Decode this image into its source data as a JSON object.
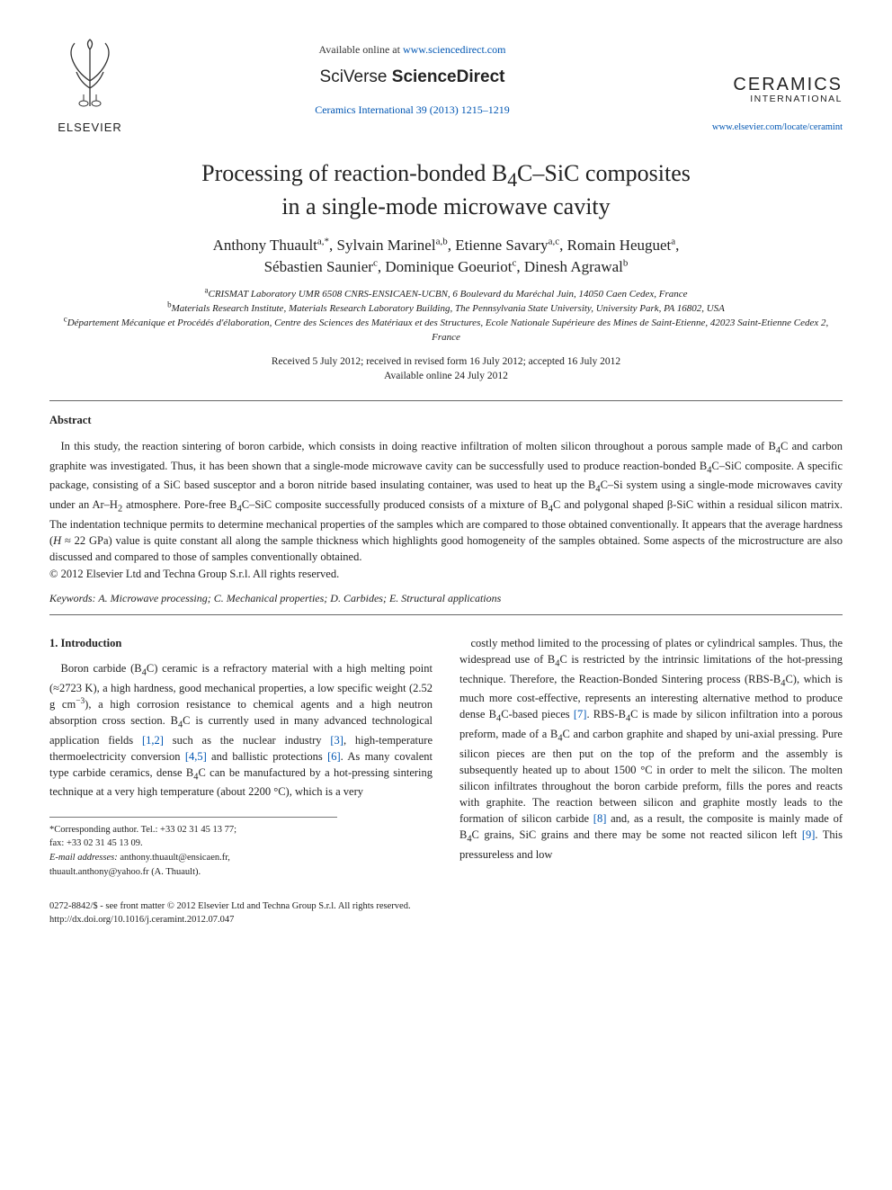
{
  "header": {
    "elsevier_label": "ELSEVIER",
    "available_prefix": "Available online at ",
    "available_link": "www.sciencedirect.com",
    "sciverse_prefix": "SciVerse ",
    "sciverse_main": "ScienceDirect",
    "journal_ref": "Ceramics International 39 (2013) 1215–1219",
    "journal_name": "CERAMICS",
    "journal_sub": "INTERNATIONAL",
    "journal_url": "www.elsevier.com/locate/ceramint"
  },
  "title": {
    "line1_prefix": "Processing of reaction-bonded B",
    "line1_sub": "4",
    "line1_mid": "C–SiC composites",
    "line2": "in a single-mode microwave cavity"
  },
  "authors": {
    "a1_name": "Anthony Thuault",
    "a1_aff": "a,",
    "a1_corr": "*",
    "a2_name": "Sylvain Marinel",
    "a2_aff": "a,b",
    "a3_name": "Etienne Savary",
    "a3_aff": "a,c",
    "a4_name": "Romain Heuguet",
    "a4_aff": "a",
    "a5_name": "Sébastien Saunier",
    "a5_aff": "c",
    "a6_name": "Dominique Goeuriot",
    "a6_aff": "c",
    "a7_name": "Dinesh Agrawal",
    "a7_aff": "b"
  },
  "affiliations": {
    "a": "CRISMAT Laboratory UMR 6508 CNRS-ENSICAEN-UCBN, 6 Boulevard du Maréchal Juin, 14050 Caen Cedex, France",
    "b": "Materials Research Institute, Materials Research Laboratory Building, The Pennsylvania State University, University Park, PA 16802, USA",
    "c": "Département Mécanique et Procédés d'élaboration, Centre des Sciences des Matériaux et des Structures, Ecole Nationale Supérieure des Mines de Saint-Etienne, 42023 Saint-Etienne Cedex 2, France"
  },
  "dates": {
    "line1": "Received 5 July 2012; received in revised form 16 July 2012; accepted 16 July 2012",
    "line2": "Available online 24 July 2012"
  },
  "abstract": {
    "label": "Abstract",
    "body_html": "In this study, the reaction sintering of boron carbide, which consists in doing reactive infiltration of molten silicon throughout a porous sample made of B<sub>4</sub>C and carbon graphite was investigated. Thus, it has been shown that a single-mode microwave cavity can be successfully used to produce reaction-bonded B<sub>4</sub>C–SiC composite. A specific package, consisting of a SiC based susceptor and a boron nitride based insulating container, was used to heat up the B<sub>4</sub>C–Si system using a single-mode microwaves cavity under an Ar–H<sub>2</sub> atmosphere. Pore-free B<sub>4</sub>C–SiC composite successfully produced consists of a mixture of B<sub>4</sub>C and polygonal shaped β-SiC within a residual silicon matrix. The indentation technique permits to determine mechanical properties of the samples which are compared to those obtained conventionally. It appears that the average hardness (<i>H</i> ≈ 22 GPa) value is quite constant all along the sample thickness which highlights good homogeneity of the samples obtained. Some aspects of the microstructure are also discussed and compared to those of samples conventionally obtained.",
    "copyright": "© 2012 Elsevier Ltd and Techna Group S.r.l. All rights reserved."
  },
  "keywords": {
    "label": "Keywords:",
    "text": " A. Microwave processing; C. Mechanical properties; D. Carbides; E. Structural applications"
  },
  "intro": {
    "heading": "1.  Introduction",
    "para1_html": "Boron carbide (B<sub>4</sub>C) ceramic is a refractory material with a high melting point (≈2723 K), a high hardness, good mechanical properties, a low specific weight (2.52 g cm<sup>−3</sup>), a high corrosion resistance to chemical agents and a high neutron absorption cross section. B<sub>4</sub>C is currently used in many advanced technological application fields <span class=\"ref-link\">[1,2]</span> such as the nuclear industry <span class=\"ref-link\">[3]</span>, high-temperature thermoelectricity conversion <span class=\"ref-link\">[4,5]</span> and ballistic protections <span class=\"ref-link\">[6]</span>. As many covalent type carbide ceramics, dense B<sub>4</sub>C can be manufactured by a hot-pressing sintering technique at a very high temperature (about 2200 °C), which is a very",
    "para2_html": "costly method limited to the processing of plates or cylindrical samples. Thus, the widespread use of B<sub>4</sub>C is restricted by the intrinsic limitations of the hot-pressing technique. Therefore, the Reaction-Bonded Sintering process (RBS-B<sub>4</sub>C), which is much more cost-effective, represents an interesting alternative method to produce dense B<sub>4</sub>C-based pieces <span class=\"ref-link\">[7]</span>. RBS-B<sub>4</sub>C is made by silicon infiltration into a porous preform, made of a B<sub>4</sub>C and carbon graphite and shaped by uni-axial pressing. Pure silicon pieces are then put on the top of the preform and the assembly is subsequently heated up to about 1500 °C in order to melt the silicon. The molten silicon infiltrates throughout the boron carbide preform, fills the pores and reacts with graphite. The reaction between silicon and graphite mostly leads to the formation of silicon carbide <span class=\"ref-link\">[8]</span> and, as a result, the composite is mainly made of B<sub>4</sub>C grains, SiC grains and there may be some not reacted silicon left <span class=\"ref-link\">[9]</span>. This pressureless and low"
  },
  "footnote": {
    "corr_label": "*Corresponding author. Tel.: +33 02 31 45 13 77;",
    "fax": "fax: +33 02 31 45 13 09.",
    "email_label": "E-mail addresses:",
    "email1": " anthony.thuault@ensicaen.fr,",
    "email2": "thuault.anthony@yahoo.fr (A. Thuault)."
  },
  "footer": {
    "issn": "0272-8842/$ - see front matter © 2012 Elsevier Ltd and Techna Group S.r.l. All rights reserved.",
    "doi": "http://dx.doi.org/10.1016/j.ceramint.2012.07.047"
  },
  "colors": {
    "text": "#222222",
    "link": "#0056b3",
    "rule": "#666666",
    "background": "#ffffff"
  }
}
